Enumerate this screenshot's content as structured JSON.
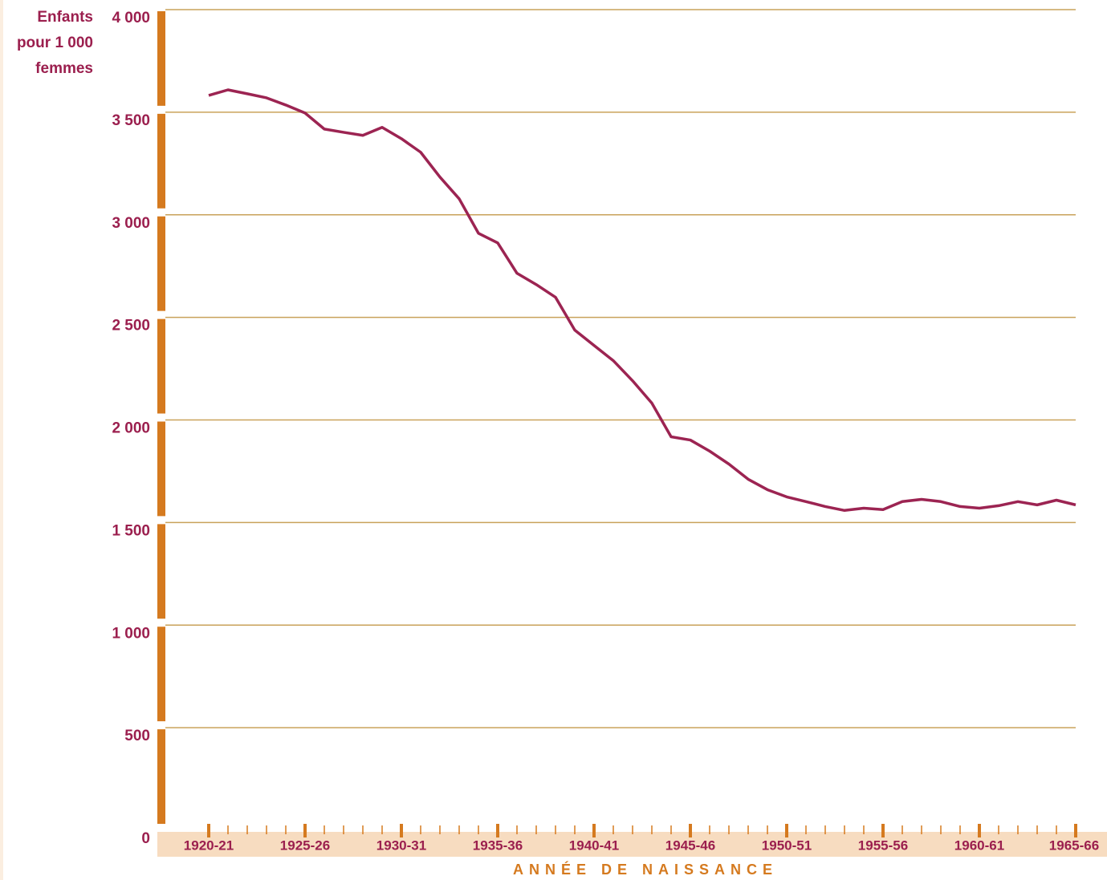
{
  "chart_data": {
    "type": "line",
    "y_label": [
      "Enfants",
      "pour 1 000",
      "femmes"
    ],
    "x_label": "ANNÉE DE NAISSANCE",
    "categories": [
      "1920-21",
      null,
      null,
      null,
      null,
      "1925-26",
      null,
      null,
      null,
      null,
      "1930-31",
      null,
      null,
      null,
      null,
      "1935-36",
      null,
      null,
      null,
      null,
      "1940-41",
      null,
      null,
      null,
      null,
      "1945-46",
      null,
      null,
      null,
      null,
      "1950-51",
      null,
      null,
      null,
      null,
      "1955-56",
      null,
      null,
      null,
      null,
      "1960-61",
      null,
      null,
      null,
      null,
      "1965-66"
    ],
    "series": [
      {
        "color": "#9c2452",
        "values": [
          3582,
          3609,
          3590,
          3570,
          3535,
          3496,
          3418,
          3402,
          3387,
          3426,
          3371,
          3305,
          3184,
          3078,
          2910,
          2863,
          2715,
          2660,
          2598,
          2438,
          2363,
          2289,
          2191,
          2082,
          1918,
          1902,
          1848,
          1785,
          1711,
          1660,
          1625,
          1602,
          1578,
          1559,
          1570,
          1563,
          1602,
          1613,
          1602,
          1578,
          1570,
          1582,
          1602,
          1586,
          1609,
          1586
        ]
      }
    ],
    "ylim": [
      0,
      4000
    ],
    "yticks": [
      0,
      500,
      {
        "value": 1000,
        "label": "1 000"
      },
      {
        "value": 1500,
        "label": "1 500"
      },
      {
        "value": 2000,
        "label": "2 000"
      },
      {
        "value": 2500,
        "label": "2 500"
      },
      {
        "value": 3000,
        "label": "3 000"
      },
      {
        "value": 3500,
        "label": "3 500"
      },
      {
        "value": 4000,
        "label": "4 000"
      }
    ],
    "grid": true
  }
}
